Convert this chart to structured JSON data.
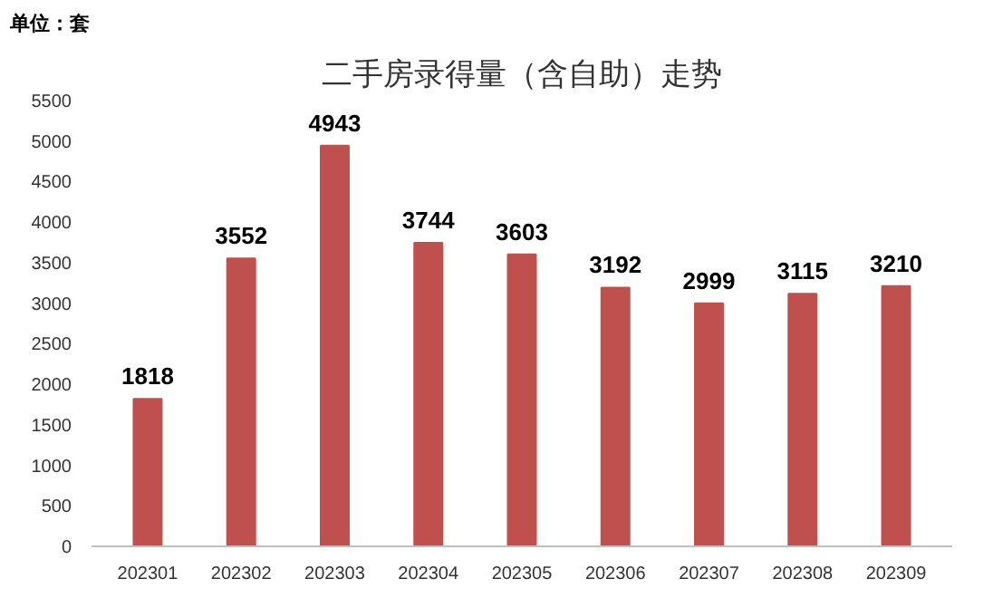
{
  "chart_data": {
    "type": "bar",
    "title": "二手房录得量（含自助）走势",
    "annotations": [
      "单位：套"
    ],
    "categories": [
      "202301",
      "202302",
      "202303",
      "202304",
      "202305",
      "202306",
      "202307",
      "202308",
      "202309"
    ],
    "values": [
      1818,
      3552,
      4943,
      3744,
      3603,
      3192,
      2999,
      3115,
      3210
    ],
    "color": "#c0504d",
    "ylim": [
      0,
      5500
    ],
    "yticks": [
      0,
      500,
      1000,
      1500,
      2000,
      2500,
      3000,
      3500,
      4000,
      4500,
      5000,
      5500
    ],
    "data_labels": true
  }
}
